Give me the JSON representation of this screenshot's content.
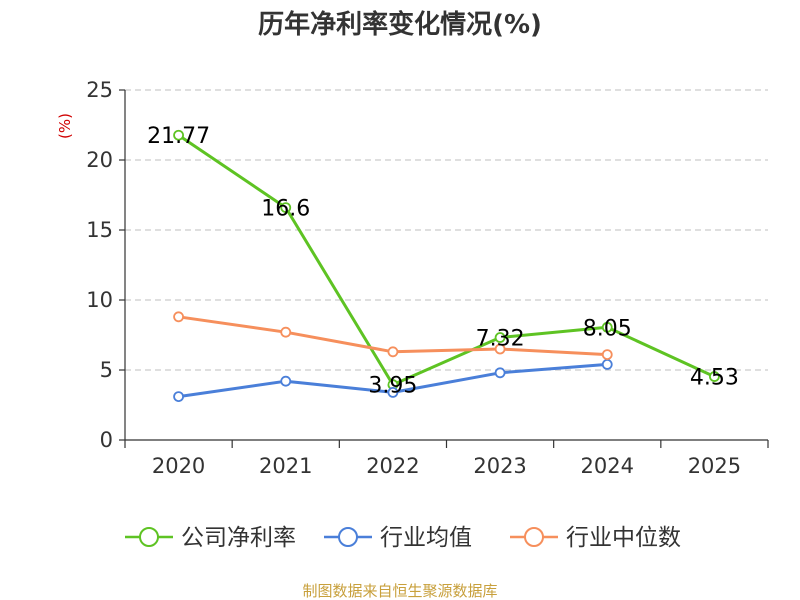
{
  "chart_data": {
    "type": "line",
    "title": "历年净利率变化情况(%)",
    "ylabel": "(%)",
    "xlabel": "",
    "ylim": [
      0,
      25
    ],
    "yticks": [
      0,
      5,
      10,
      15,
      20,
      25
    ],
    "categories": [
      "2020",
      "2021",
      "2022",
      "2023",
      "2024",
      "2025"
    ],
    "grid": true,
    "legend_position": "bottom",
    "series": [
      {
        "name": "公司净利率",
        "color": "#5ec323",
        "values": [
          21.77,
          16.6,
          3.95,
          7.32,
          8.05,
          4.53
        ],
        "labels": [
          "21.77",
          "16.6",
          "3.95",
          "7.32",
          "8.05",
          "4.53"
        ]
      },
      {
        "name": "行业均值",
        "color": "#4a7fd9",
        "values": [
          3.1,
          4.2,
          3.4,
          4.8,
          5.4,
          null
        ]
      },
      {
        "name": "行业中位数",
        "color": "#f68f5c",
        "values": [
          8.8,
          7.7,
          6.3,
          6.5,
          6.1,
          null
        ]
      }
    ],
    "source": "制图数据来自恒生聚源数据库"
  }
}
